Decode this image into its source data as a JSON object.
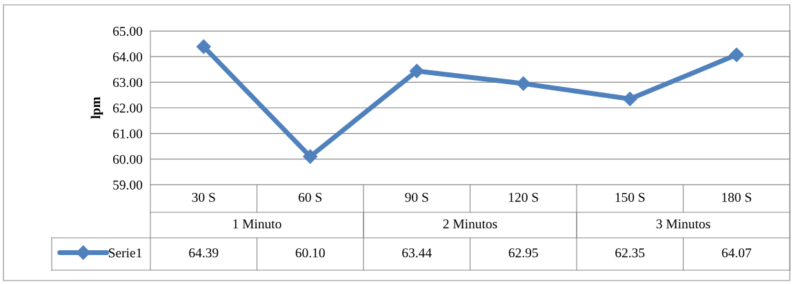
{
  "chart_data": {
    "type": "line",
    "ylabel": "lpm",
    "categories": [
      "30 S",
      "60 S",
      "90 S",
      "120 S",
      "150 S",
      "180 S"
    ],
    "series": [
      {
        "name": "Serie1",
        "color": "#4f81bd",
        "values": [
          64.39,
          60.1,
          63.44,
          62.95,
          62.35,
          64.07
        ]
      }
    ],
    "ylim": [
      59,
      65
    ],
    "yticks": [
      {
        "value": 59,
        "label": "59.00"
      },
      {
        "value": 60,
        "label": "60.00"
      },
      {
        "value": 61,
        "label": "61.00"
      },
      {
        "value": 62,
        "label": "62.00"
      },
      {
        "value": 63,
        "label": "63.00"
      },
      {
        "value": 64,
        "label": "64.00"
      },
      {
        "value": 65,
        "label": "65.00"
      }
    ],
    "value_labels": [
      "64.39",
      "60.10",
      "63.44",
      "62.95",
      "62.35",
      "64.07"
    ],
    "annotations": [
      "1 Minuto",
      "2 Minutos",
      "3 Minutos"
    ],
    "grid": "y",
    "legend": "bottom",
    "marker": "diamond",
    "line_style": "solid"
  }
}
